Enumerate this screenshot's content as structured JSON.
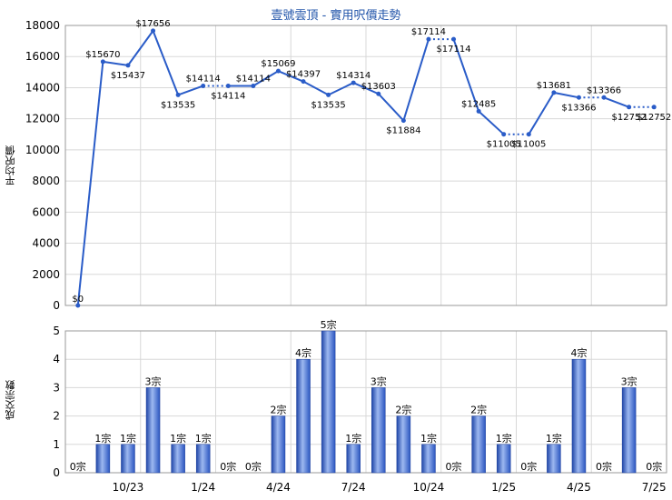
{
  "chart_data": [
    {
      "type": "line",
      "title": "壹號雲頂 - 實用呎價走勢",
      "ylabel": "平均呎價",
      "ylim": [
        0,
        18000
      ],
      "yticks": [
        0,
        2000,
        4000,
        6000,
        8000,
        10000,
        12000,
        14000,
        16000,
        18000
      ],
      "values": [
        0,
        15670,
        15437,
        17656,
        13535,
        14114,
        14114,
        14114,
        15069,
        14397,
        13535,
        14314,
        13603,
        11884,
        17114,
        17114,
        12485,
        11005,
        11005,
        13681,
        13366,
        13366,
        12752,
        12752
      ],
      "labels": [
        "$0",
        "$15670",
        "$15437",
        "$17656",
        "$13535",
        "$14114",
        "$14114",
        "$14114",
        "$15069",
        "$14397",
        "$13535",
        "$14314",
        "$13603",
        "$11884",
        "$17114",
        "$17114",
        "$12485",
        "$11005",
        "$11005",
        "$13681",
        "$13366",
        "$13366",
        "$12752",
        "$12752"
      ],
      "dotted_segments": [
        5,
        14,
        17,
        20,
        22
      ],
      "color": "#2a5cc8"
    },
    {
      "type": "bar",
      "ylabel": "成交宗數",
      "ylim": [
        0,
        5
      ],
      "yticks": [
        0,
        1,
        2,
        3,
        4,
        5
      ],
      "categories": [
        "10/23",
        "1/24",
        "4/24",
        "7/24",
        "10/24",
        "1/25",
        "4/25",
        "7/25"
      ],
      "values": [
        0,
        1,
        1,
        3,
        1,
        1,
        0,
        0,
        2,
        4,
        5,
        1,
        3,
        2,
        1,
        0,
        2,
        1,
        0,
        1,
        4,
        0,
        3,
        0
      ],
      "labels": [
        "0宗",
        "1宗",
        "1宗",
        "3宗",
        "1宗",
        "1宗",
        "0宗",
        "0宗",
        "2宗",
        "4宗",
        "5宗",
        "1宗",
        "3宗",
        "2宗",
        "1宗",
        "0宗",
        "2宗",
        "1宗",
        "0宗",
        "1宗",
        "4宗",
        "0宗",
        "3宗",
        "0宗"
      ],
      "color": "#3a66cc"
    }
  ]
}
